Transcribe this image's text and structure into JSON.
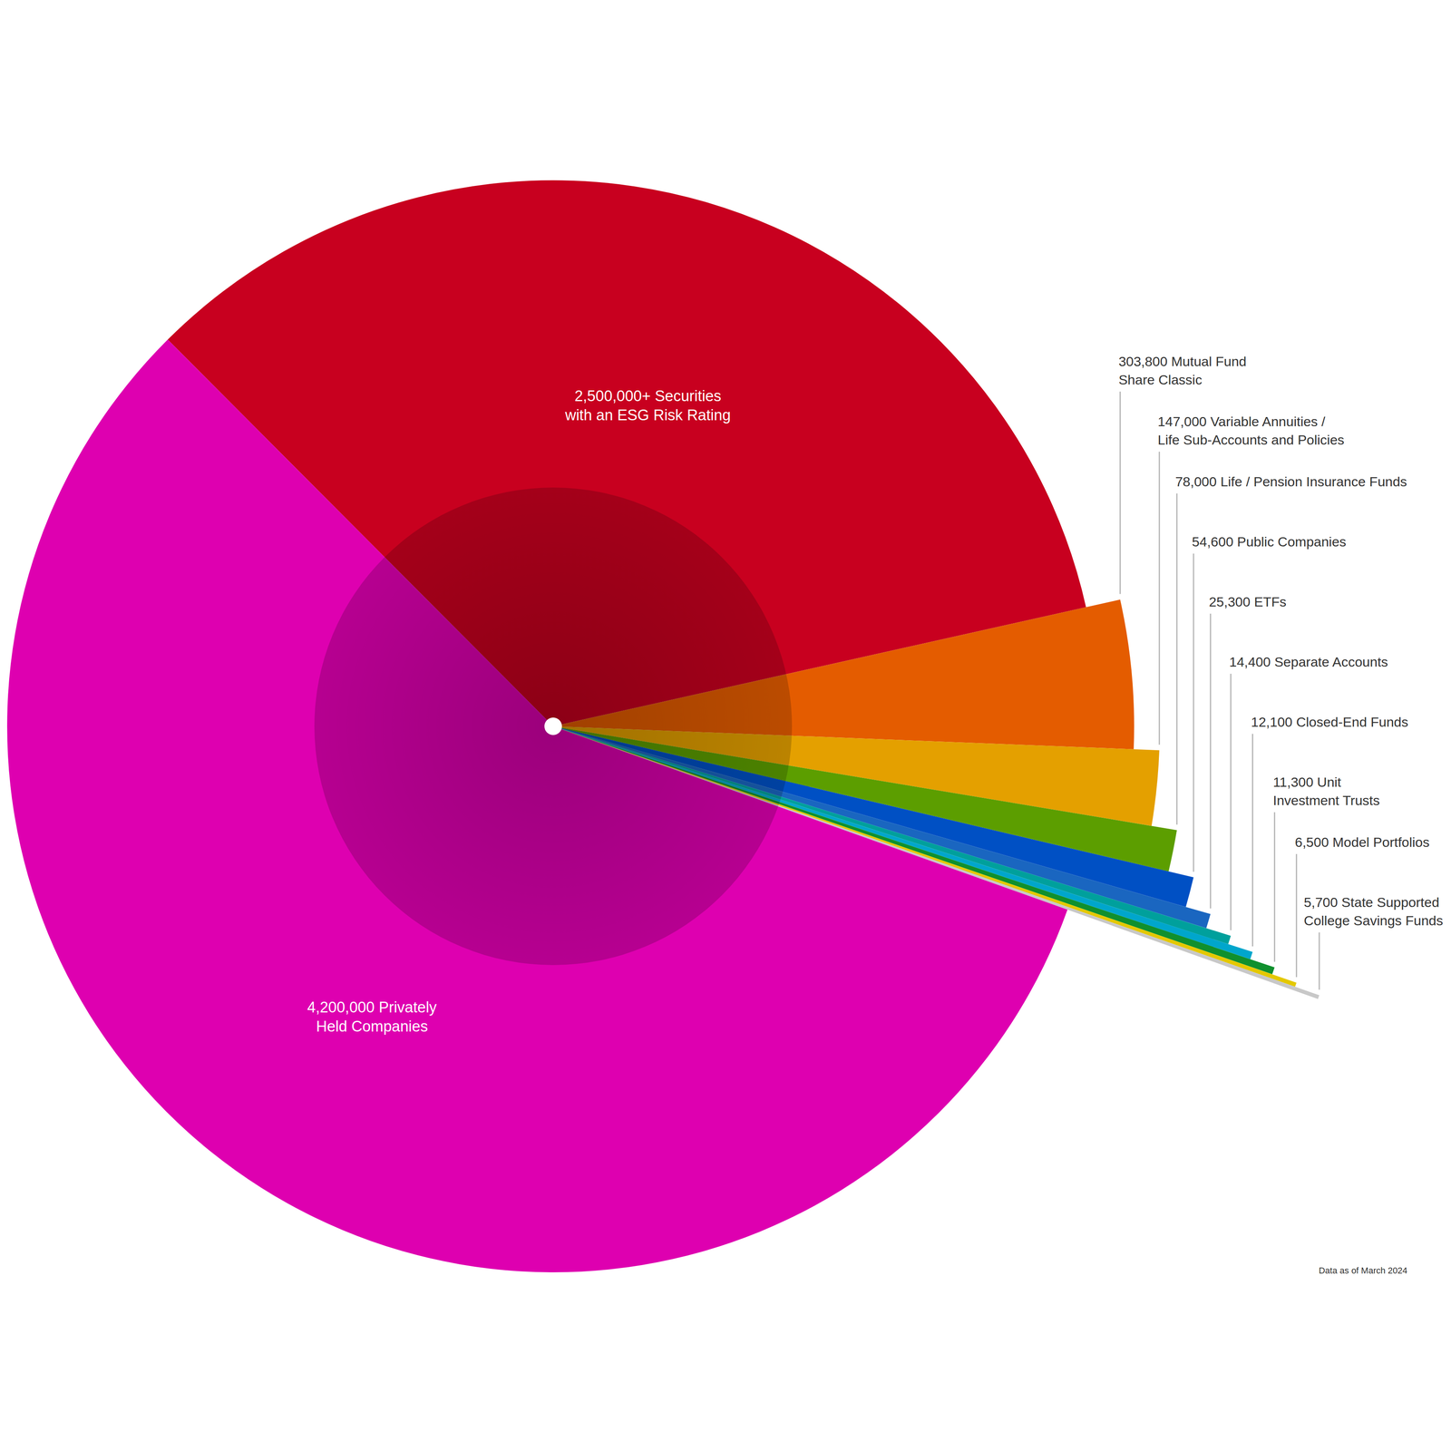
{
  "chart_data": {
    "type": "pie",
    "values": [
      2500000,
      303800,
      147000,
      78000,
      54600,
      25300,
      14400,
      12100,
      11300,
      6500,
      5700,
      4200000
    ],
    "value_labels": [
      "2,500,000+ Securities\nwith an ESG Risk Rating",
      "303,800 Mutual Fund\nShare Classic",
      "147,000 Variable Annuities /\nLife Sub-Accounts and Policies",
      "78,000 Life / Pension Insurance Funds",
      "54,600 Public Companies",
      "25,300 ETFs",
      "14,400 Separate Accounts",
      "12,100 Closed-End Funds",
      "11,300 Unit\nInvestment Trusts",
      "6,500 Model Portfolios",
      "5,700 State Supported\nCollege Savings Funds",
      "4,200,000 Privately\nHeld Companies"
    ],
    "colors": [
      "#c8001f",
      "#e45c00",
      "#e4a000",
      "#5c9e00",
      "#0050c4",
      "#1a66c0",
      "#00a09c",
      "#00a6cc",
      "#10902e",
      "#e4c800",
      "#c8c8c8",
      "#de00b0"
    ],
    "data_labels": true,
    "annotation": "Data as of March 2024"
  }
}
